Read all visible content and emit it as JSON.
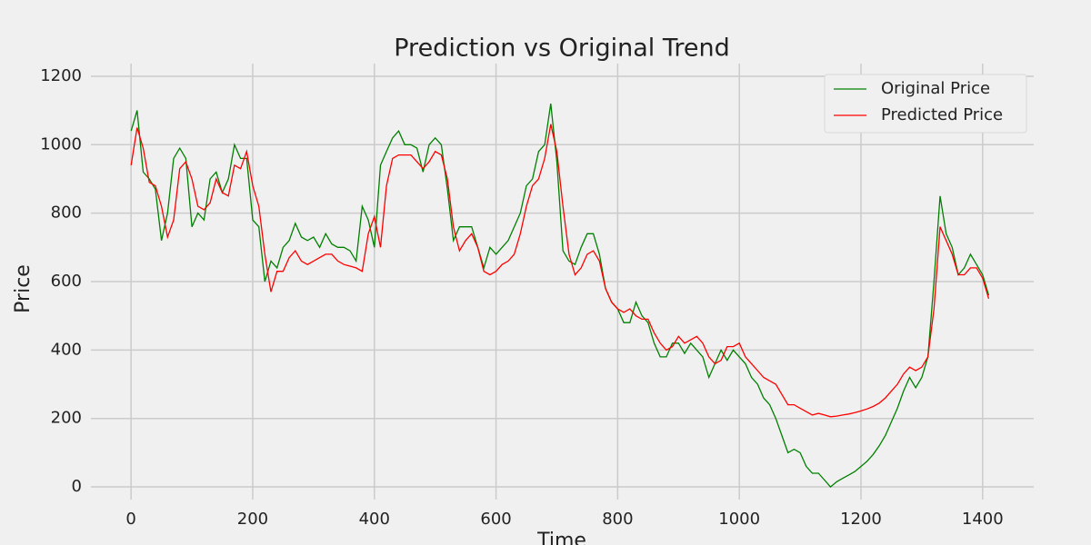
{
  "chart_data": {
    "type": "line",
    "title": "Prediction vs Original Trend",
    "x_label": "Time",
    "y_label": "Price",
    "x": [
      0,
      10,
      20,
      30,
      40,
      50,
      60,
      70,
      80,
      90,
      100,
      110,
      120,
      130,
      140,
      150,
      160,
      170,
      180,
      190,
      200,
      210,
      220,
      230,
      240,
      250,
      260,
      270,
      280,
      290,
      300,
      310,
      320,
      330,
      340,
      350,
      360,
      370,
      380,
      390,
      400,
      410,
      420,
      430,
      440,
      450,
      460,
      470,
      480,
      490,
      500,
      510,
      520,
      530,
      540,
      550,
      560,
      570,
      580,
      590,
      600,
      610,
      620,
      630,
      640,
      650,
      660,
      670,
      680,
      690,
      700,
      710,
      720,
      730,
      740,
      750,
      760,
      770,
      780,
      790,
      800,
      810,
      820,
      830,
      840,
      850,
      860,
      870,
      880,
      890,
      900,
      910,
      920,
      930,
      940,
      950,
      960,
      970,
      980,
      990,
      1000,
      1010,
      1020,
      1030,
      1040,
      1050,
      1060,
      1070,
      1080,
      1090,
      1100,
      1110,
      1120,
      1130,
      1140,
      1150,
      1160,
      1170,
      1180,
      1190,
      1200,
      1210,
      1220,
      1230,
      1240,
      1250,
      1260,
      1270,
      1280,
      1290,
      1300,
      1310,
      1320,
      1330,
      1340,
      1350,
      1360,
      1370,
      1380,
      1390,
      1400,
      1410
    ],
    "series": [
      {
        "name": "Original Price",
        "color": "#008000",
        "values": [
          1040,
          1100,
          920,
          900,
          870,
          720,
          800,
          960,
          990,
          960,
          760,
          800,
          780,
          900,
          920,
          860,
          900,
          1000,
          960,
          960,
          780,
          760,
          600,
          660,
          640,
          700,
          720,
          770,
          730,
          720,
          730,
          700,
          740,
          710,
          700,
          700,
          690,
          660,
          820,
          780,
          700,
          940,
          980,
          1020,
          1040,
          1000,
          1000,
          990,
          920,
          1000,
          1020,
          1000,
          870,
          720,
          760,
          760,
          760,
          700,
          640,
          700,
          680,
          700,
          720,
          760,
          800,
          880,
          900,
          980,
          1000,
          1120,
          950,
          690,
          660,
          650,
          700,
          740,
          740,
          680,
          580,
          540,
          520,
          480,
          480,
          540,
          500,
          480,
          420,
          380,
          380,
          420,
          420,
          390,
          420,
          400,
          380,
          320,
          360,
          400,
          370,
          400,
          380,
          360,
          320,
          300,
          260,
          240,
          200,
          150,
          100,
          110,
          100,
          60,
          40,
          40,
          20,
          0,
          15,
          25,
          35,
          45,
          60,
          75,
          95,
          120,
          150,
          190,
          230,
          280,
          320,
          290,
          320,
          380,
          600,
          850,
          740,
          700,
          620,
          640,
          680,
          650,
          620,
          560
        ]
      },
      {
        "name": "Predicted Price",
        "color": "#ff0000",
        "values": [
          940,
          1050,
          990,
          890,
          880,
          820,
          730,
          780,
          930,
          950,
          900,
          820,
          810,
          830,
          900,
          860,
          850,
          940,
          930,
          980,
          880,
          820,
          680,
          570,
          630,
          630,
          670,
          690,
          660,
          650,
          660,
          670,
          680,
          680,
          660,
          650,
          645,
          640,
          630,
          740,
          790,
          700,
          880,
          960,
          970,
          970,
          970,
          950,
          930,
          950,
          980,
          970,
          900,
          760,
          690,
          720,
          740,
          700,
          630,
          620,
          630,
          650,
          660,
          680,
          740,
          820,
          880,
          900,
          960,
          1060,
          980,
          820,
          680,
          620,
          640,
          680,
          690,
          660,
          580,
          540,
          520,
          510,
          520,
          500,
          490,
          490,
          450,
          420,
          400,
          410,
          440,
          420,
          430,
          440,
          420,
          380,
          360,
          370,
          410,
          410,
          420,
          380,
          360,
          340,
          320,
          310,
          300,
          270,
          240,
          240,
          230,
          220,
          210,
          215,
          210,
          205,
          207,
          210,
          213,
          217,
          222,
          228,
          235,
          245,
          260,
          280,
          300,
          330,
          350,
          340,
          350,
          380,
          520,
          760,
          720,
          680,
          620,
          620,
          640,
          640,
          610,
          550
        ]
      }
    ],
    "xlim": [
      -66,
      1484
    ],
    "ylim": [
      -37,
      1237
    ],
    "xticks": [
      0,
      200,
      400,
      600,
      800,
      1000,
      1200,
      1400
    ],
    "yticks": [
      0,
      200,
      400,
      600,
      800,
      1000,
      1200
    ],
    "grid": true,
    "legend": "upper right"
  }
}
